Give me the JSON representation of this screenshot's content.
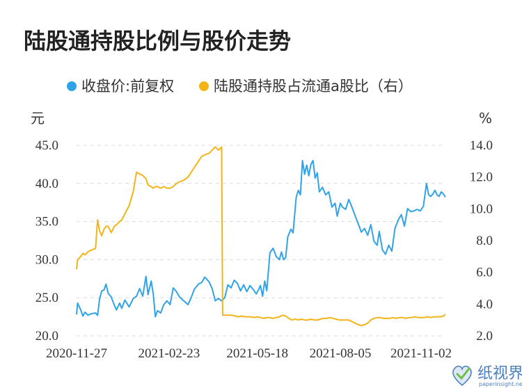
{
  "chart_data": {
    "type": "line",
    "title": "陆股通持股比例与股价走势",
    "left_unit": "元",
    "right_unit": "%",
    "x_ticks": [
      "2020-11-27",
      "2021-02-23",
      "2021-05-18",
      "2021-08-05",
      "2021-11-02"
    ],
    "y_left": {
      "ticks": [
        "20.0",
        "25.0",
        "30.0",
        "35.0",
        "40.0",
        "45.0"
      ],
      "range": [
        20,
        45
      ]
    },
    "y_right": {
      "ticks": [
        "2.0",
        "4.0",
        "6.0",
        "8.0",
        "10.0",
        "12.0",
        "14.0"
      ],
      "range": [
        2,
        14
      ]
    },
    "grid": true,
    "legend_position": "top",
    "series": [
      {
        "name": "收盘价:前复权",
        "axis": "left",
        "color": "#2fa3e6",
        "points": [
          [
            "2020-11-27",
            22.8
          ],
          [
            "2020-11-28",
            24.3
          ],
          [
            "2020-12-01",
            23.4
          ],
          [
            "2020-12-03",
            22.6
          ],
          [
            "2020-12-05",
            23.1
          ],
          [
            "2020-12-08",
            22.7
          ],
          [
            "2020-12-11",
            22.9
          ],
          [
            "2020-12-15",
            23.0
          ],
          [
            "2020-12-17",
            22.7
          ],
          [
            "2020-12-19",
            24.9
          ],
          [
            "2020-12-21",
            25.9
          ],
          [
            "2020-12-23",
            26.0
          ],
          [
            "2020-12-25",
            26.8
          ],
          [
            "2020-12-27",
            25.6
          ],
          [
            "2020-12-30",
            25.1
          ],
          [
            "2021-01-02",
            24.0
          ],
          [
            "2021-01-04",
            23.4
          ],
          [
            "2021-01-07",
            24.3
          ],
          [
            "2021-01-09",
            23.6
          ],
          [
            "2021-01-12",
            24.7
          ],
          [
            "2021-01-16",
            23.8
          ],
          [
            "2021-01-20",
            24.9
          ],
          [
            "2021-01-23",
            25.2
          ],
          [
            "2021-01-26",
            26.2
          ],
          [
            "2021-01-29",
            25.2
          ],
          [
            "2021-02-01",
            27.8
          ],
          [
            "2021-02-03",
            25.4
          ],
          [
            "2021-02-06",
            27.2
          ],
          [
            "2021-02-08",
            25.5
          ],
          [
            "2021-02-10",
            22.5
          ],
          [
            "2021-02-12",
            23.3
          ],
          [
            "2021-02-15",
            23.0
          ],
          [
            "2021-02-18",
            24.1
          ],
          [
            "2021-02-21",
            24.6
          ],
          [
            "2021-02-24",
            24.1
          ],
          [
            "2021-02-27",
            26.3
          ],
          [
            "2021-03-02",
            25.8
          ],
          [
            "2021-03-05",
            25.1
          ],
          [
            "2021-03-09",
            24.6
          ],
          [
            "2021-03-13",
            24.1
          ],
          [
            "2021-03-16",
            25.0
          ],
          [
            "2021-03-19",
            26.1
          ],
          [
            "2021-03-23",
            26.8
          ],
          [
            "2021-03-26",
            27.0
          ],
          [
            "2021-03-29",
            27.7
          ],
          [
            "2021-04-02",
            27.1
          ],
          [
            "2021-04-05",
            26.2
          ],
          [
            "2021-04-08",
            24.6
          ],
          [
            "2021-04-11",
            24.9
          ],
          [
            "2021-04-14",
            24.6
          ],
          [
            "2021-04-17",
            25.0
          ],
          [
            "2021-04-20",
            26.7
          ],
          [
            "2021-04-23",
            26.3
          ],
          [
            "2021-04-26",
            27.3
          ],
          [
            "2021-04-29",
            26.9
          ],
          [
            "2021-05-02",
            25.9
          ],
          [
            "2021-05-05",
            26.7
          ],
          [
            "2021-05-08",
            25.8
          ],
          [
            "2021-05-11",
            26.6
          ],
          [
            "2021-05-14",
            26.1
          ],
          [
            "2021-05-17",
            25.5
          ],
          [
            "2021-05-19",
            26.0
          ],
          [
            "2021-05-21",
            26.6
          ],
          [
            "2021-05-23",
            25.2
          ],
          [
            "2021-05-25",
            27.2
          ],
          [
            "2021-05-27",
            25.9
          ],
          [
            "2021-05-30",
            30.9
          ],
          [
            "2021-06-02",
            31.5
          ],
          [
            "2021-06-05",
            30.4
          ],
          [
            "2021-06-08",
            30.0
          ],
          [
            "2021-06-10",
            31.0
          ],
          [
            "2021-06-12",
            30.0
          ],
          [
            "2021-06-14",
            30.3
          ],
          [
            "2021-06-16",
            33.0
          ],
          [
            "2021-06-19",
            34.0
          ],
          [
            "2021-06-21",
            33.5
          ],
          [
            "2021-06-24",
            38.2
          ],
          [
            "2021-06-26",
            39.1
          ],
          [
            "2021-06-28",
            38.5
          ],
          [
            "2021-06-30",
            43.0
          ],
          [
            "2021-07-02",
            41.2
          ],
          [
            "2021-07-04",
            42.4
          ],
          [
            "2021-07-06",
            41.0
          ],
          [
            "2021-07-08",
            42.5
          ],
          [
            "2021-07-10",
            43.0
          ],
          [
            "2021-07-12",
            40.7
          ],
          [
            "2021-07-14",
            41.4
          ],
          [
            "2021-07-16",
            38.9
          ],
          [
            "2021-07-19",
            39.5
          ],
          [
            "2021-07-22",
            38.5
          ],
          [
            "2021-07-25",
            38.9
          ],
          [
            "2021-07-28",
            36.9
          ],
          [
            "2021-07-31",
            37.4
          ],
          [
            "2021-08-02",
            35.7
          ],
          [
            "2021-08-05",
            37.4
          ],
          [
            "2021-08-07",
            36.9
          ],
          [
            "2021-08-10",
            36.6
          ],
          [
            "2021-08-13",
            37.9
          ],
          [
            "2021-08-16",
            36.9
          ],
          [
            "2021-08-19",
            35.8
          ],
          [
            "2021-08-22",
            34.7
          ],
          [
            "2021-08-25",
            33.6
          ],
          [
            "2021-08-28",
            34.1
          ],
          [
            "2021-08-31",
            33.2
          ],
          [
            "2021-09-03",
            34.6
          ],
          [
            "2021-09-06",
            32.4
          ],
          [
            "2021-09-09",
            31.9
          ],
          [
            "2021-09-11",
            33.7
          ],
          [
            "2021-09-14",
            31.3
          ],
          [
            "2021-09-17",
            30.7
          ],
          [
            "2021-09-20",
            31.9
          ],
          [
            "2021-09-23",
            31.1
          ],
          [
            "2021-09-26",
            34.1
          ],
          [
            "2021-09-29",
            35.2
          ],
          [
            "2021-10-02",
            35.9
          ],
          [
            "2021-10-05",
            34.4
          ],
          [
            "2021-10-08",
            36.7
          ],
          [
            "2021-10-11",
            36.3
          ],
          [
            "2021-10-14",
            36.4
          ],
          [
            "2021-10-17",
            36.6
          ],
          [
            "2021-10-20",
            36.4
          ],
          [
            "2021-10-23",
            37.0
          ],
          [
            "2021-10-26",
            40.0
          ],
          [
            "2021-10-28",
            38.5
          ],
          [
            "2021-10-30",
            38.3
          ],
          [
            "2021-11-01",
            38.6
          ],
          [
            "2021-11-03",
            39.1
          ],
          [
            "2021-11-05",
            38.5
          ],
          [
            "2021-11-07",
            38.3
          ],
          [
            "2021-11-09",
            38.9
          ],
          [
            "2021-11-11",
            38.6
          ],
          [
            "2021-11-13",
            38.2
          ]
        ]
      },
      {
        "name": "陆股通持股占流通a股比（右）",
        "axis": "right",
        "color": "#f2b416",
        "points": [
          [
            "2020-11-27",
            6.2
          ],
          [
            "2020-11-28",
            6.8
          ],
          [
            "2020-12-01",
            7.0
          ],
          [
            "2020-12-03",
            7.2
          ],
          [
            "2020-12-05",
            7.1
          ],
          [
            "2020-12-08",
            7.3
          ],
          [
            "2020-12-11",
            7.4
          ],
          [
            "2020-12-15",
            7.5
          ],
          [
            "2020-12-17",
            9.3
          ],
          [
            "2020-12-19",
            8.6
          ],
          [
            "2020-12-21",
            8.3
          ],
          [
            "2020-12-23",
            8.7
          ],
          [
            "2020-12-25",
            8.9
          ],
          [
            "2020-12-27",
            8.9
          ],
          [
            "2020-12-30",
            8.5
          ],
          [
            "2021-01-02",
            8.9
          ],
          [
            "2021-01-04",
            9.0
          ],
          [
            "2021-01-07",
            9.2
          ],
          [
            "2021-01-09",
            9.3
          ],
          [
            "2021-01-12",
            9.7
          ],
          [
            "2021-01-16",
            10.2
          ],
          [
            "2021-01-20",
            11.1
          ],
          [
            "2021-01-23",
            12.3
          ],
          [
            "2021-01-26",
            12.2
          ],
          [
            "2021-01-29",
            12.1
          ],
          [
            "2021-02-01",
            11.9
          ],
          [
            "2021-02-03",
            11.5
          ],
          [
            "2021-02-06",
            11.4
          ],
          [
            "2021-02-08",
            11.3
          ],
          [
            "2021-02-10",
            11.4
          ],
          [
            "2021-02-12",
            11.4
          ],
          [
            "2021-02-15",
            11.3
          ],
          [
            "2021-02-18",
            11.4
          ],
          [
            "2021-02-21",
            11.3
          ],
          [
            "2021-02-24",
            11.3
          ],
          [
            "2021-02-27",
            11.4
          ],
          [
            "2021-03-02",
            11.6
          ],
          [
            "2021-03-05",
            11.7
          ],
          [
            "2021-03-09",
            11.8
          ],
          [
            "2021-03-13",
            12.0
          ],
          [
            "2021-03-16",
            12.3
          ],
          [
            "2021-03-19",
            12.6
          ],
          [
            "2021-03-23",
            13.0
          ],
          [
            "2021-03-26",
            13.3
          ],
          [
            "2021-03-29",
            13.4
          ],
          [
            "2021-04-02",
            13.5
          ],
          [
            "2021-04-05",
            13.7
          ],
          [
            "2021-04-08",
            13.9
          ],
          [
            "2021-04-11",
            13.7
          ],
          [
            "2021-04-14",
            13.9
          ],
          [
            "2021-04-15",
            3.3
          ],
          [
            "2021-04-18",
            3.3
          ],
          [
            "2021-04-21",
            3.3
          ],
          [
            "2021-04-24",
            3.3
          ],
          [
            "2021-04-27",
            3.25
          ],
          [
            "2021-04-30",
            3.2
          ],
          [
            "2021-05-03",
            3.25
          ],
          [
            "2021-05-06",
            3.2
          ],
          [
            "2021-05-09",
            3.2
          ],
          [
            "2021-05-12",
            3.2
          ],
          [
            "2021-05-15",
            3.15
          ],
          [
            "2021-05-18",
            3.2
          ],
          [
            "2021-05-21",
            3.15
          ],
          [
            "2021-05-24",
            3.1
          ],
          [
            "2021-05-27",
            3.15
          ],
          [
            "2021-05-30",
            3.15
          ],
          [
            "2021-06-02",
            3.1
          ],
          [
            "2021-06-05",
            3.15
          ],
          [
            "2021-06-08",
            3.2
          ],
          [
            "2021-06-11",
            3.3
          ],
          [
            "2021-06-14",
            3.25
          ],
          [
            "2021-06-17",
            3.1
          ],
          [
            "2021-06-20",
            3.0
          ],
          [
            "2021-06-23",
            3.05
          ],
          [
            "2021-06-26",
            3.0
          ],
          [
            "2021-06-29",
            3.05
          ],
          [
            "2021-07-02",
            3.0
          ],
          [
            "2021-07-05",
            3.0
          ],
          [
            "2021-07-08",
            3.05
          ],
          [
            "2021-07-11",
            3.0
          ],
          [
            "2021-07-14",
            3.0
          ],
          [
            "2021-07-17",
            3.05
          ],
          [
            "2021-07-20",
            3.1
          ],
          [
            "2021-07-23",
            3.1
          ],
          [
            "2021-07-26",
            3.15
          ],
          [
            "2021-07-29",
            3.1
          ],
          [
            "2021-08-01",
            3.05
          ],
          [
            "2021-08-04",
            3.0
          ],
          [
            "2021-08-07",
            3.0
          ],
          [
            "2021-08-10",
            3.0
          ],
          [
            "2021-08-13",
            3.0
          ],
          [
            "2021-08-16",
            2.9
          ],
          [
            "2021-08-19",
            2.8
          ],
          [
            "2021-08-22",
            2.7
          ],
          [
            "2021-08-25",
            2.65
          ],
          [
            "2021-08-28",
            2.7
          ],
          [
            "2021-08-31",
            2.8
          ],
          [
            "2021-09-03",
            3.0
          ],
          [
            "2021-09-06",
            3.1
          ],
          [
            "2021-09-09",
            3.15
          ],
          [
            "2021-09-12",
            3.15
          ],
          [
            "2021-09-15",
            3.1
          ],
          [
            "2021-09-18",
            3.1
          ],
          [
            "2021-09-21",
            3.1
          ],
          [
            "2021-09-24",
            3.15
          ],
          [
            "2021-09-27",
            3.1
          ],
          [
            "2021-09-30",
            3.15
          ],
          [
            "2021-10-03",
            3.15
          ],
          [
            "2021-10-06",
            3.1
          ],
          [
            "2021-10-09",
            3.15
          ],
          [
            "2021-10-12",
            3.15
          ],
          [
            "2021-10-15",
            3.2
          ],
          [
            "2021-10-18",
            3.15
          ],
          [
            "2021-10-21",
            3.15
          ],
          [
            "2021-10-24",
            3.15
          ],
          [
            "2021-10-27",
            3.2
          ],
          [
            "2021-10-30",
            3.15
          ],
          [
            "2021-11-02",
            3.2
          ],
          [
            "2021-11-05",
            3.2
          ],
          [
            "2021-11-08",
            3.2
          ],
          [
            "2021-11-11",
            3.25
          ],
          [
            "2021-11-13",
            3.35
          ]
        ]
      }
    ]
  },
  "watermark": {
    "text": "纸视界",
    "subtext": "paperinsight.net",
    "icon": "heart-check-logo-icon",
    "color": "#4a7fbf"
  }
}
